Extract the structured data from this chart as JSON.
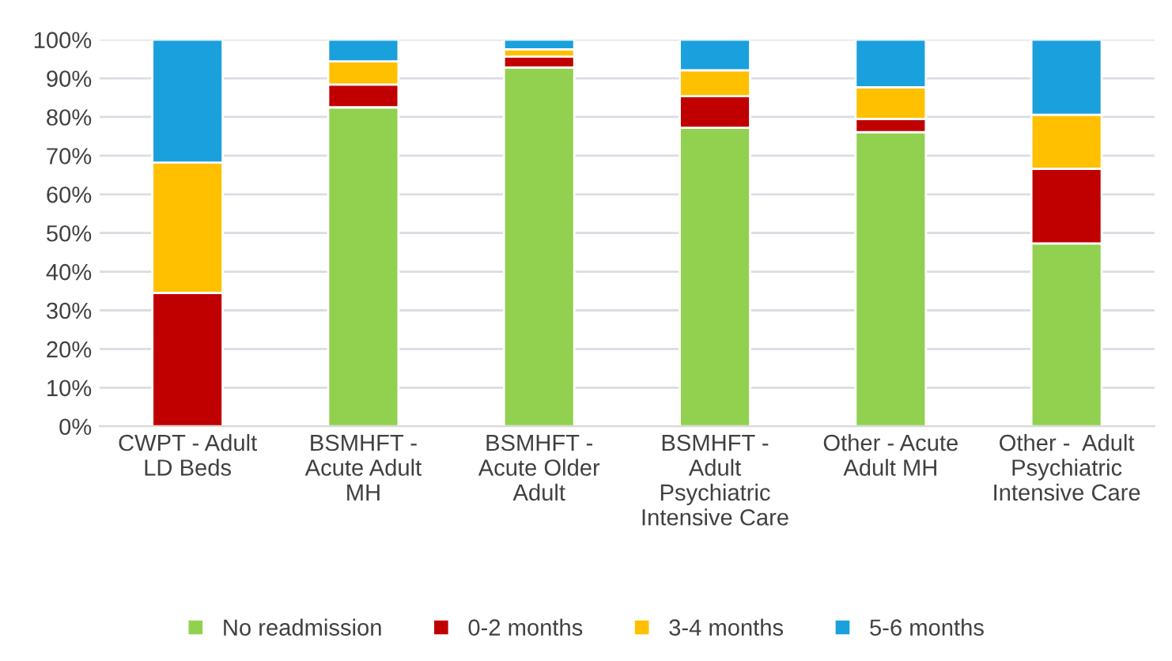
{
  "chart_data": {
    "type": "bar",
    "stacked": true,
    "categories": [
      "CWPT - Adult\nLD Beds",
      "BSMHFT -\nAcute Adult\nMH",
      "BSMHFT -\nAcute Older\nAdult",
      "BSMHFT -\nAdult\nPsychiatric\nIntensive Care",
      "Other - Acute\nAdult MH",
      "Other -  Adult\nPsychiatric\nIntensive Care"
    ],
    "series": [
      {
        "name": "No readmission",
        "color": "#92d050",
        "values": [
          0,
          82.5,
          92.8,
          77.2,
          76.1,
          47.3
        ]
      },
      {
        "name": "0-2 months",
        "color": "#c00000",
        "values": [
          34.5,
          5.9,
          2.8,
          8.2,
          3.4,
          19.3
        ]
      },
      {
        "name": "3-4 months",
        "color": "#ffc000",
        "values": [
          33.7,
          6,
          1.9,
          6.7,
          8.2,
          14
        ]
      },
      {
        "name": "5-6 months",
        "color": "#1aa0dc",
        "values": [
          31.8,
          5.6,
          2.5,
          7.9,
          12.3,
          19.4
        ]
      }
    ],
    "ylim": [
      0,
      100
    ],
    "yticks": [
      {
        "value": 0,
        "label": "0%"
      },
      {
        "value": 10,
        "label": "10%"
      },
      {
        "value": 20,
        "label": "20%"
      },
      {
        "value": 30,
        "label": "30%"
      },
      {
        "value": 40,
        "label": "40%"
      },
      {
        "value": 50,
        "label": "50%"
      },
      {
        "value": 60,
        "label": "60%"
      },
      {
        "value": 70,
        "label": "70%"
      },
      {
        "value": 80,
        "label": "80%"
      },
      {
        "value": 90,
        "label": "90%"
      },
      {
        "value": 100,
        "label": "100%"
      }
    ],
    "grid": "y",
    "legend": "bottom"
  }
}
